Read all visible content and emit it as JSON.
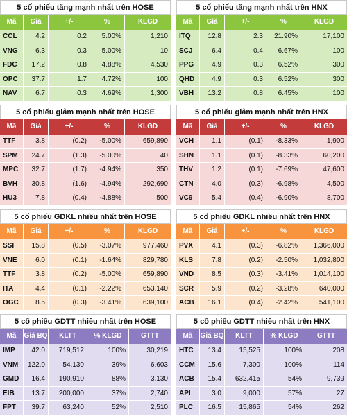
{
  "colors": {
    "up": {
      "head": "#8cc63f",
      "row": "#d7ebc1"
    },
    "down": {
      "head": "#c33b3b",
      "row": "#f6d8d8"
    },
    "volume": {
      "head": "#f7943d",
      "row": "#fde4cc"
    },
    "value": {
      "head": "#8e7cc3",
      "row": "#e2dcf0"
    }
  },
  "panels": [
    {
      "id": "up-hose",
      "theme": "up",
      "title": "5 cổ phiếu tăng mạnh nhất trên HOSE",
      "headers": [
        "Mã",
        "Giá",
        "+/-",
        "%",
        "KLGD"
      ],
      "rows": [
        [
          "CCL",
          "4.2",
          "0.2",
          "5.00%",
          "1,210"
        ],
        [
          "VNG",
          "6.3",
          "0.3",
          "5.00%",
          "10"
        ],
        [
          "FDC",
          "17.2",
          "0.8",
          "4.88%",
          "4,530"
        ],
        [
          "OPC",
          "37.7",
          "1.7",
          "4.72%",
          "100"
        ],
        [
          "NAV",
          "6.7",
          "0.3",
          "4.69%",
          "1,300"
        ]
      ]
    },
    {
      "id": "up-hnx",
      "theme": "up",
      "title": "5 cổ phiếu tăng mạnh nhất trên HNX",
      "headers": [
        "Mã",
        "Giá",
        "+/-",
        "%",
        "KLGD"
      ],
      "rows": [
        [
          "ITQ",
          "12.8",
          "2.3",
          "21.90%",
          "17,100"
        ],
        [
          "SCJ",
          "6.4",
          "0.4",
          "6.67%",
          "100"
        ],
        [
          "PPG",
          "4.9",
          "0.3",
          "6.52%",
          "300"
        ],
        [
          "QHD",
          "4.9",
          "0.3",
          "6.52%",
          "300"
        ],
        [
          "VBH",
          "13.2",
          "0.8",
          "6.45%",
          "100"
        ]
      ]
    },
    {
      "id": "down-hose",
      "theme": "down",
      "title": "5 cổ phiếu giảm mạnh nhất trên HOSE",
      "headers": [
        "Mã",
        "Giá",
        "+/-",
        "%",
        "KLGD"
      ],
      "rows": [
        [
          "TTF",
          "3.8",
          "(0.2)",
          "-5.00%",
          "659,890"
        ],
        [
          "SPM",
          "24.7",
          "(1.3)",
          "-5.00%",
          "40"
        ],
        [
          "MPC",
          "32.7",
          "(1.7)",
          "-4.94%",
          "350"
        ],
        [
          "BVH",
          "30.8",
          "(1.6)",
          "-4.94%",
          "292,690"
        ],
        [
          "HU3",
          "7.8",
          "(0.4)",
          "-4.88%",
          "500"
        ]
      ]
    },
    {
      "id": "down-hnx",
      "theme": "down",
      "title": "5 cổ phiếu giảm mạnh nhất trên HNX",
      "headers": [
        "Mã",
        "Giá",
        "+/-",
        "%",
        "KLGD"
      ],
      "rows": [
        [
          "VCH",
          "1.1",
          "(0.1)",
          "-8.33%",
          "1,900"
        ],
        [
          "SHN",
          "1.1",
          "(0.1)",
          "-8.33%",
          "60,200"
        ],
        [
          "THV",
          "1.2",
          "(0.1)",
          "-7.69%",
          "47,600"
        ],
        [
          "CTN",
          "4.0",
          "(0.3)",
          "-6.98%",
          "4,500"
        ],
        [
          "VC9",
          "5.4",
          "(0.4)",
          "-6.90%",
          "8,700"
        ]
      ]
    },
    {
      "id": "vol-hose",
      "theme": "volume",
      "title": "5 cổ phiếu GDKL nhiều nhất trên HOSE",
      "headers": [
        "Mã",
        "Giá",
        "+/-",
        "%",
        "KLGD"
      ],
      "rows": [
        [
          "SSI",
          "15.8",
          "(0.5)",
          "-3.07%",
          "977,460"
        ],
        [
          "VNE",
          "6.0",
          "(0.1)",
          "-1.64%",
          "829,780"
        ],
        [
          "TTF",
          "3.8",
          "(0.2)",
          "-5.00%",
          "659,890"
        ],
        [
          "ITA",
          "4.4",
          "(0.1)",
          "-2.22%",
          "653,140"
        ],
        [
          "OGC",
          "8.5",
          "(0.3)",
          "-3.41%",
          "639,100"
        ]
      ]
    },
    {
      "id": "vol-hnx",
      "theme": "volume",
      "title": "5 cổ phiếu GDKL nhiều nhất trên HNX",
      "headers": [
        "Mã",
        "Giá",
        "+/-",
        "%",
        "KLGD"
      ],
      "rows": [
        [
          "PVX",
          "4.1",
          "(0.3)",
          "-6.82%",
          "1,366,000"
        ],
        [
          "KLS",
          "7.8",
          "(0.2)",
          "-2.50%",
          "1,032,800"
        ],
        [
          "VND",
          "8.5",
          "(0.3)",
          "-3.41%",
          "1,014,100"
        ],
        [
          "SCR",
          "5.9",
          "(0.2)",
          "-3.28%",
          "640,000"
        ],
        [
          "ACB",
          "16.1",
          "(0.4)",
          "-2.42%",
          "541,100"
        ]
      ]
    },
    {
      "id": "val-hose",
      "theme": "value",
      "title": "5 cổ phiếu GDTT nhiều nhất trên HOSE",
      "headers": [
        "Mã",
        "Giá BQ",
        "KLTT",
        "% KLGD",
        "GTTT"
      ],
      "rows": [
        [
          "IMP",
          "42.0",
          "719,512",
          "100%",
          "30,219"
        ],
        [
          "VNM",
          "122.0",
          "54,130",
          "39%",
          "6,603"
        ],
        [
          "GMD",
          "16.4",
          "190,910",
          "88%",
          "3,130"
        ],
        [
          "EIB",
          "13.7",
          "200,000",
          "37%",
          "2,740"
        ],
        [
          "FPT",
          "39.7",
          "63,240",
          "52%",
          "2,510"
        ]
      ]
    },
    {
      "id": "val-hnx",
      "theme": "value",
      "title": "5 cổ phiếu GDTT nhiều nhất trên HNX",
      "headers": [
        "Mã",
        "Giá BQ",
        "KLTT",
        "% KLGD",
        "GTTT"
      ],
      "rows": [
        [
          "HTC",
          "13.4",
          "15,525",
          "100%",
          "208"
        ],
        [
          "CCM",
          "15.6",
          "7,300",
          "100%",
          "114"
        ],
        [
          "ACB",
          "15.4",
          "632,415",
          "54%",
          "9,739"
        ],
        [
          "API",
          "3.0",
          "9,000",
          "57%",
          "27"
        ],
        [
          "PLC",
          "16.5",
          "15,865",
          "54%",
          "262"
        ]
      ]
    }
  ]
}
